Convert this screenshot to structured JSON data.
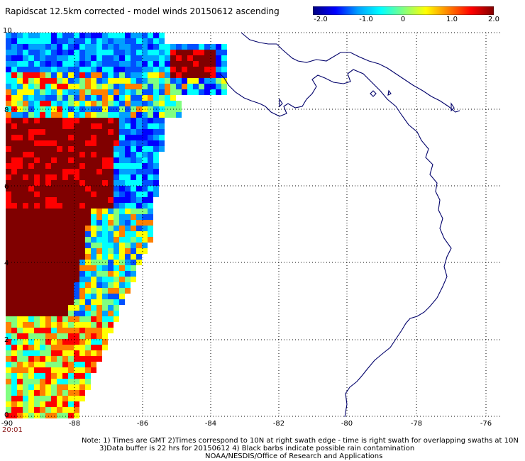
{
  "title": "Rapidscat 12.5km corrected - model winds 20150612 ascending",
  "colorbar": {
    "labels": [
      "-2.0",
      "-1.0",
      "0",
      "1.0",
      "2.0"
    ],
    "stops": [
      "#000080",
      "#0000ff",
      "#00a0ff",
      "#00ffff",
      "#80ff80",
      "#ffff00",
      "#ff8000",
      "#ff0000",
      "#800000"
    ]
  },
  "axes": {
    "y_labels": [
      "10",
      "8",
      "6",
      "4",
      "2",
      "0"
    ],
    "x_labels": [
      "-90",
      "-88",
      "-86",
      "-84",
      "-82",
      "-80",
      "-78",
      "-76"
    ],
    "lat_range": [
      0,
      10
    ],
    "lon_range": [
      -90,
      -75.5
    ],
    "grid": "dotted"
  },
  "time_label": "20:01",
  "notes": {
    "line1": "Note: 1) Times are GMT 2)Times correspond to 10N at right swath edge - time is right swath for overlapping swaths at 10N",
    "line2": "3)Data buffer is 22 hrs for 20150612 4) Black barbs indicate possible rain contamination",
    "line3": "NOAA/NESDIS/Office of Research and Applications"
  }
}
